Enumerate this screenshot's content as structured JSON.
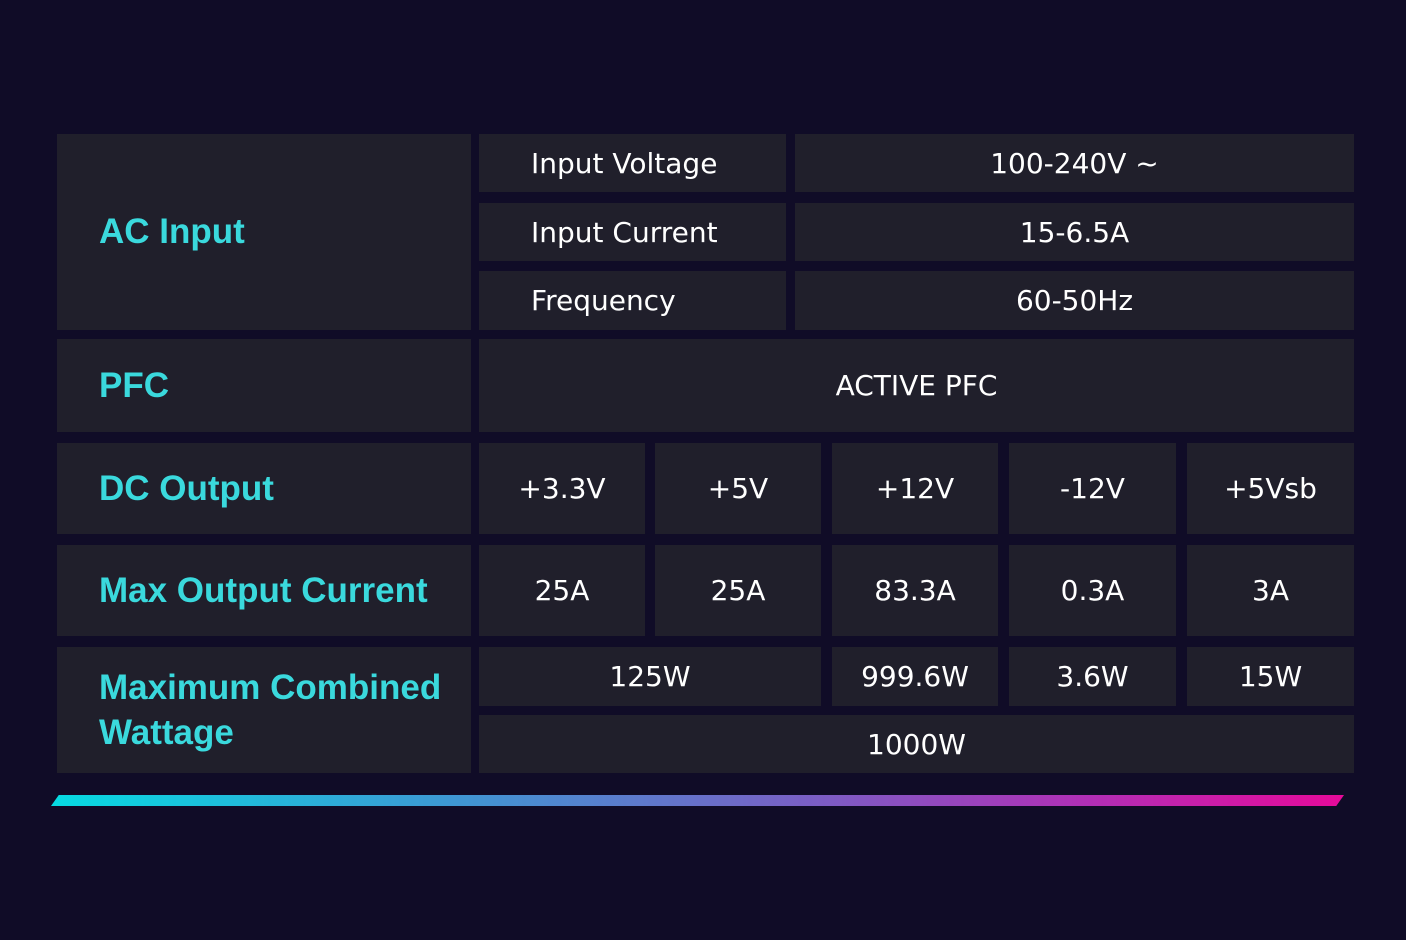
{
  "rows": {
    "ac_input": {
      "label": "AC Input",
      "items": [
        {
          "name": "Input Voltage",
          "value": "100-240V ~"
        },
        {
          "name": "Input Current",
          "value": "15-6.5A"
        },
        {
          "name": "Frequency",
          "value": "60-50Hz"
        }
      ]
    },
    "pfc": {
      "label": "PFC",
      "value": "ACTIVE PFC"
    },
    "dc_output": {
      "label": "DC Output",
      "rails": [
        "+3.3V",
        "+5V",
        "+12V",
        "-12V",
        "+5Vsb"
      ]
    },
    "max_output_current": {
      "label": "Max Output Current",
      "values": [
        "25A",
        "25A",
        "83.3A",
        "0.3A",
        "3A"
      ]
    },
    "max_combined_wattage": {
      "label_line1": "Maximum Combined",
      "label_line2": "Wattage",
      "values": [
        "125W",
        "999.6W",
        "3.6W",
        "15W"
      ],
      "total": "1000W"
    }
  },
  "colors": {
    "background": "#100c27",
    "cell": "#201f2b",
    "accent": "#3ad9dd",
    "gradient_start": "#06dbe2",
    "gradient_end": "#e60a9a"
  }
}
